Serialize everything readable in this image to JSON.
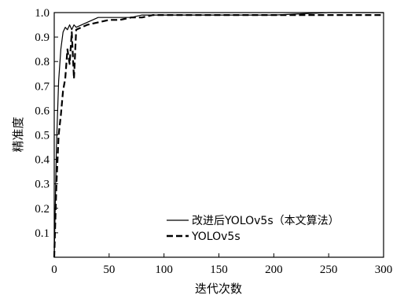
{
  "chart_data": {
    "type": "line",
    "xlabel": "迭代次数",
    "ylabel": "精准度",
    "xlim": [
      0,
      300
    ],
    "ylim": [
      0,
      1.0
    ],
    "xticks": [
      0,
      50,
      100,
      150,
      200,
      250,
      300
    ],
    "yticks": [
      0.1,
      0.2,
      0.3,
      0.4,
      0.5,
      0.6,
      0.7,
      0.8,
      0.9,
      1.0
    ],
    "ytick_labels": [
      "0.1",
      "0.2",
      "0.3",
      "0.4",
      "0.5",
      "0.6",
      "0.7",
      "0.8",
      "0.9",
      "1.0"
    ],
    "legend": {
      "position": "bottom-right"
    },
    "series": [
      {
        "name": "改进后YOLOv5s（本文算法）",
        "style": "solid",
        "color": "#000000",
        "x": [
          0,
          2,
          4,
          6,
          8,
          10,
          12,
          14,
          16,
          18,
          20,
          25,
          30,
          35,
          40,
          50,
          60,
          70,
          80,
          90,
          100,
          120,
          150,
          200,
          250,
          300
        ],
        "y": [
          0.0,
          0.45,
          0.72,
          0.85,
          0.92,
          0.94,
          0.93,
          0.95,
          0.93,
          0.95,
          0.94,
          0.95,
          0.96,
          0.97,
          0.98,
          0.98,
          0.98,
          0.98,
          0.99,
          0.99,
          0.99,
          0.99,
          0.99,
          0.99,
          1.0,
          1.0
        ]
      },
      {
        "name": "YOLOv5s",
        "style": "dashed",
        "color": "#000000",
        "x": [
          0,
          2,
          4,
          6,
          8,
          10,
          12,
          14,
          16,
          18,
          20,
          25,
          30,
          40,
          50,
          60,
          70,
          80,
          90,
          100,
          120,
          150,
          200,
          250,
          300
        ],
        "y": [
          0.0,
          0.3,
          0.5,
          0.58,
          0.68,
          0.73,
          0.85,
          0.79,
          0.92,
          0.73,
          0.93,
          0.94,
          0.95,
          0.96,
          0.97,
          0.97,
          0.98,
          0.98,
          0.99,
          0.99,
          0.99,
          0.99,
          0.99,
          0.99,
          0.99
        ]
      }
    ]
  }
}
